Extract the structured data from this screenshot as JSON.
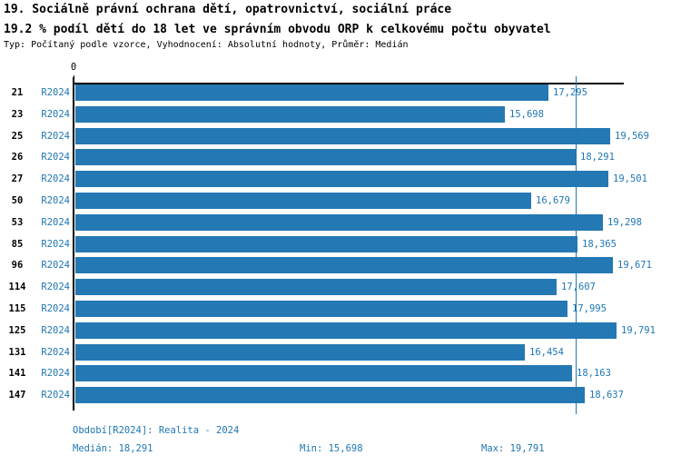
{
  "header": {
    "title": "19. Sociálně právní ochrana dětí, opatrovnictví, sociální práce",
    "subtitle": "19.2 % podíl dětí do 18 let ve správním obvodu ORP k celkovému počtu obyvatel",
    "meta": "Typ: Počítaný podle vzorce, Vyhodnocení: Absolutní hodnoty, Průměr: Medián"
  },
  "chart_data": {
    "type": "bar",
    "orientation": "horizontal",
    "categories": [
      "21",
      "23",
      "25",
      "26",
      "27",
      "50",
      "53",
      "85",
      "96",
      "114",
      "115",
      "125",
      "131",
      "141",
      "147"
    ],
    "period_label": "R2024",
    "series": [
      {
        "name": "R2024",
        "values": [
          17295,
          15698,
          19569,
          18291,
          19501,
          16679,
          19298,
          18365,
          19671,
          17607,
          17995,
          19791,
          16454,
          18163,
          18637
        ]
      }
    ],
    "value_labels": [
      "17,295",
      "15,698",
      "19,569",
      "18,291",
      "19,501",
      "16,679",
      "19,298",
      "18,365",
      "19,671",
      "17,607",
      "17,995",
      "19,791",
      "16,454",
      "18,163",
      "18,637"
    ],
    "xlim": [
      0,
      20000
    ],
    "zero_tick_label": "0",
    "median_line_value": 18291,
    "stats": {
      "median": 18291,
      "min": 15698,
      "max": 19791
    },
    "bar_color": "#2478b4",
    "label_color": "#1f77b4",
    "grid": false,
    "legend": "none"
  },
  "footer": {
    "period": "Období[R2024]: Realita - 2024",
    "median": "Medián: 18,291",
    "min": "Min: 15,698",
    "max": "Max: 19,791"
  }
}
